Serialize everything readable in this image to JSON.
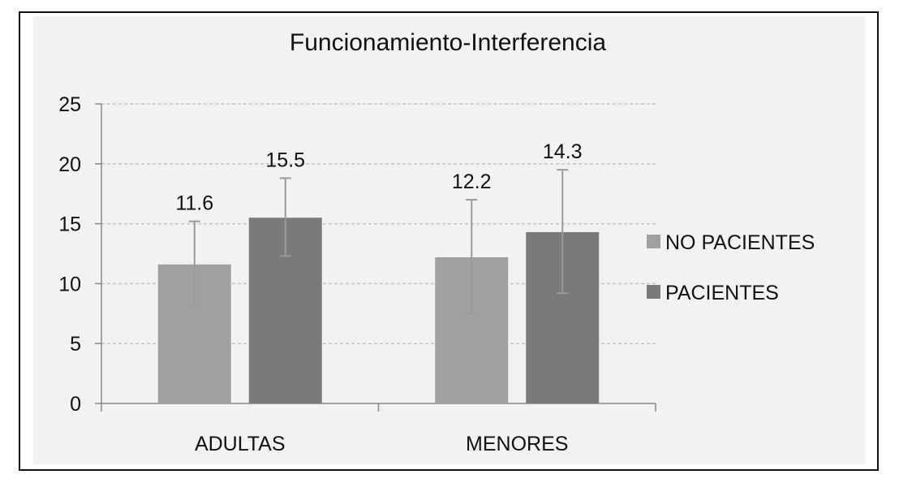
{
  "chart_data": {
    "type": "bar",
    "title": "Funcionamiento-Interferencia",
    "categories": [
      "ADULTAS",
      "MENORES"
    ],
    "series": [
      {
        "name": "NO PACIENTES",
        "color": "#a0a0a0",
        "values": [
          11.6,
          12.2
        ],
        "error_low": [
          8.1,
          7.5
        ],
        "error_high": [
          15.2,
          17.0
        ]
      },
      {
        "name": "PACIENTES",
        "color": "#7a7a7a",
        "values": [
          15.5,
          14.3
        ],
        "error_low": [
          12.3,
          9.2
        ],
        "error_high": [
          18.8,
          19.5
        ]
      }
    ],
    "data_labels": [
      [
        "11.6",
        "12.2"
      ],
      [
        "15.5",
        "14.3"
      ]
    ],
    "ylim": [
      0,
      25
    ],
    "yticks": [
      0,
      5,
      10,
      15,
      20,
      25
    ],
    "grid": true,
    "legend_position": "right",
    "xlabel": "",
    "ylabel": ""
  }
}
